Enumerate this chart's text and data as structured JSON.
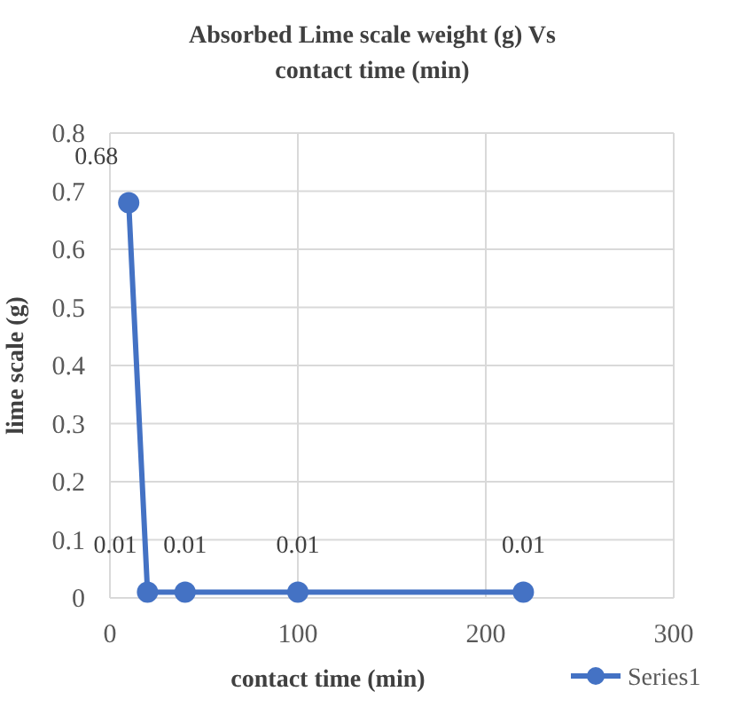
{
  "chart_data": {
    "type": "line",
    "title": "Absorbed Lime scale weight  (g)  Vs contact time (min)",
    "xlabel": "contact time (min)",
    "ylabel": "lime scale  (g)",
    "x": [
      10,
      20,
      40,
      100,
      220
    ],
    "series": [
      {
        "name": "Series1",
        "color": "#4472c4",
        "values": [
          0.68,
          0.01,
          0.01,
          0.01,
          0.01
        ]
      }
    ],
    "xlim": [
      0,
      300
    ],
    "xticks": [
      0,
      100,
      200,
      300
    ],
    "ylim": [
      0,
      0.8
    ],
    "yticks": [
      0,
      0.1,
      0.2,
      0.3,
      0.4,
      0.5,
      0.6,
      0.7,
      0.8
    ],
    "grid": true,
    "marker": "circle",
    "line_style": "solid",
    "data_labels": true,
    "legend": "bottom right"
  }
}
